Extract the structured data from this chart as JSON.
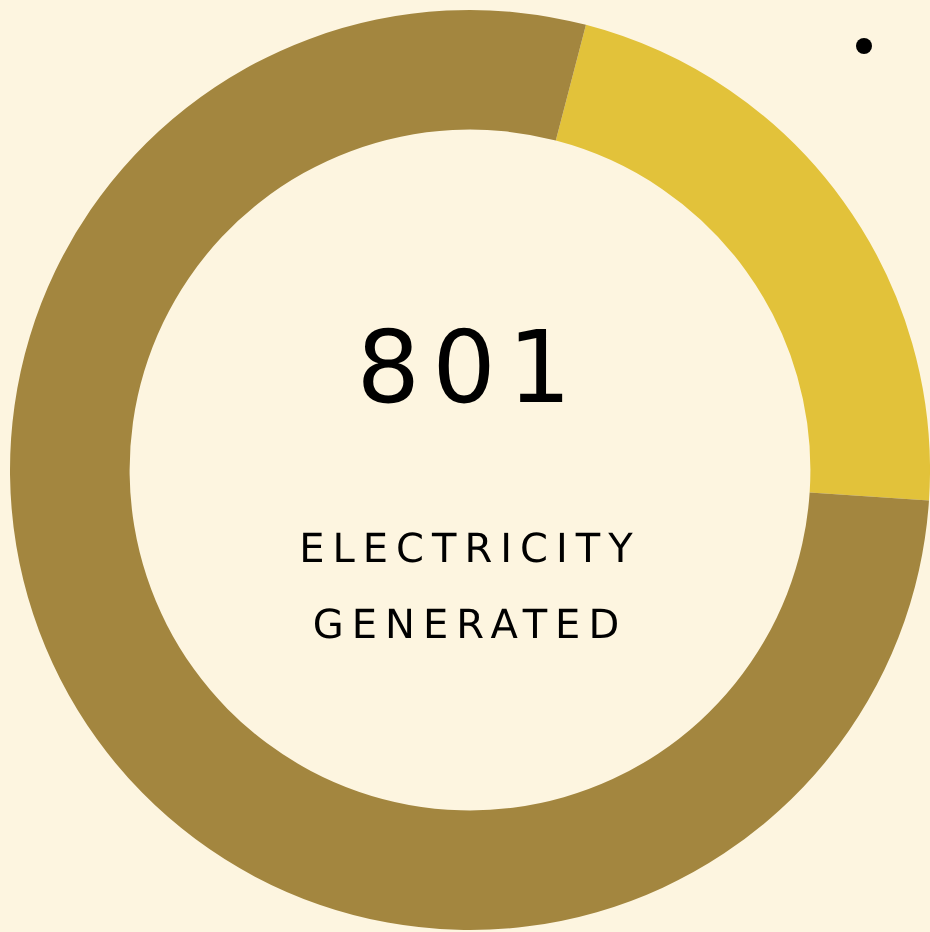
{
  "chart_data": {
    "type": "donut",
    "title": "801",
    "subtitle": "ELECTRICITY GENERATED",
    "categories": [
      null,
      null
    ],
    "values": [
      22,
      78
    ],
    "colors": [
      "#e2c23a",
      "#a3863f"
    ],
    "legend": false
  }
}
